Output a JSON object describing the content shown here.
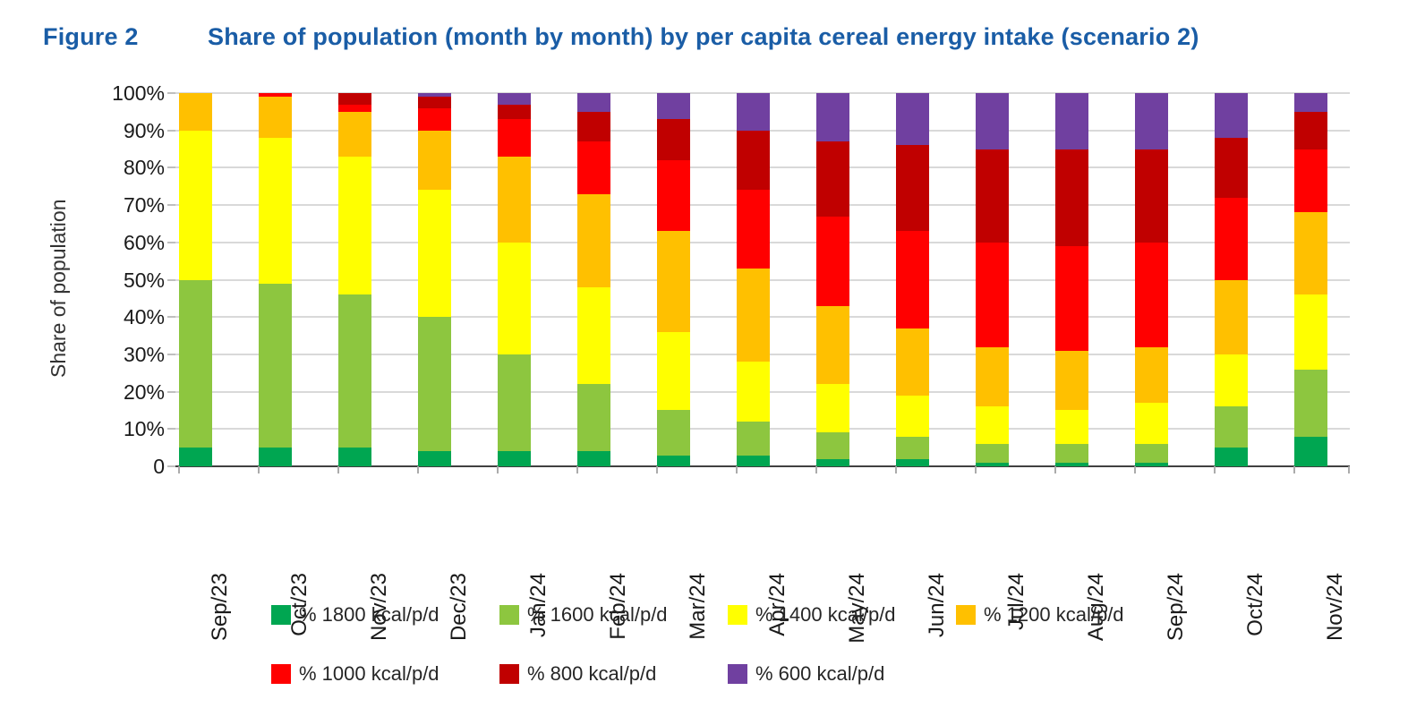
{
  "title": {
    "figure_label": "Figure 2",
    "text": "Share of population (month by month) by per capita cereal energy intake (scenario 2)"
  },
  "chart_data": {
    "type": "bar",
    "subtype": "stacked-100",
    "categories": [
      "Sep/23",
      "Oct/23",
      "Nov/23",
      "Dec/23",
      "Jan/24",
      "Feb/24",
      "Mar/24",
      "Apr/24",
      "May/24",
      "Jun/24",
      "Jul/24",
      "Aug/24",
      "Sep/24",
      "Oct/24",
      "Nov/24"
    ],
    "series": [
      {
        "name": "% 1800 kcal/p/d",
        "color": "#00A651",
        "values": [
          5,
          5,
          5,
          4,
          4,
          4,
          3,
          3,
          2,
          2,
          1,
          1,
          1,
          5,
          8
        ]
      },
      {
        "name": "% 1600 kcal/p/d",
        "color": "#8DC63F",
        "values": [
          45,
          44,
          41,
          36,
          26,
          18,
          12,
          9,
          7,
          6,
          5,
          5,
          5,
          11,
          18
        ]
      },
      {
        "name": "% 1400 kcal/p/d",
        "color": "#FFFF00",
        "values": [
          40,
          39,
          37,
          34,
          30,
          26,
          21,
          16,
          13,
          11,
          10,
          9,
          11,
          14,
          20
        ]
      },
      {
        "name": "% 1200 kcal/p/d",
        "color": "#FFC000",
        "values": [
          10,
          11,
          12,
          16,
          23,
          25,
          27,
          25,
          21,
          18,
          16,
          16,
          15,
          20,
          22
        ]
      },
      {
        "name": "% 1000 kcal/p/d",
        "color": "#FF0000",
        "values": [
          0,
          1,
          2,
          6,
          10,
          14,
          19,
          21,
          24,
          26,
          28,
          28,
          28,
          22,
          17
        ]
      },
      {
        "name": "% 800 kcal/p/d",
        "color": "#C00000",
        "values": [
          0,
          0,
          3,
          3,
          4,
          8,
          11,
          16,
          20,
          23,
          25,
          26,
          25,
          16,
          10
        ]
      },
      {
        "name": "% 600 kcal/p/d",
        "color": "#7040A0",
        "values": [
          0,
          0,
          0,
          1,
          3,
          5,
          7,
          10,
          13,
          14,
          15,
          15,
          15,
          12,
          5
        ]
      }
    ],
    "ylabel": "Share of population",
    "xlabel": "",
    "ylim": [
      0,
      100
    ],
    "yticks": [
      "0",
      "10%",
      "20%",
      "30%",
      "40%",
      "50%",
      "60%",
      "70%",
      "80%",
      "90%",
      "100%"
    ],
    "grid": true,
    "legend_position": "bottom"
  },
  "colors": {
    "title": "#1A5DA6",
    "grid": "#D9D9D9",
    "axis": "#404040",
    "tick_text": "#1a1a1a"
  }
}
